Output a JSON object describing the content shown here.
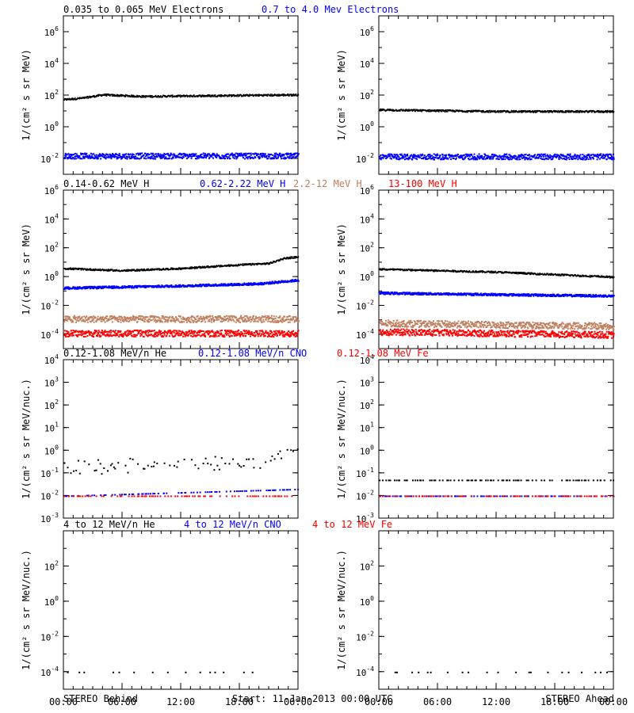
{
  "colors": {
    "black": "#000000",
    "blue": "#0000ff",
    "tan": "#c08060",
    "red": "#ff0000"
  },
  "rows": [
    {
      "ylabel": "1/(cm² s sr MeV)",
      "scale": "log",
      "ylim_exp": [
        -3,
        7
      ],
      "ticks": [
        {
          "base": "10",
          "exp": "6",
          "value": 6
        },
        {
          "base": "10",
          "exp": "4",
          "value": 4
        },
        {
          "base": "10",
          "exp": "2",
          "value": 2
        },
        {
          "base": "10",
          "exp": "0",
          "value": 0
        },
        {
          "base": "10",
          "exp": "-2",
          "value": -2
        }
      ],
      "legend": [
        {
          "text": "0.035 to 0.065 MeV Electrons",
          "color": "black"
        },
        {
          "text": "0.7 to 4.0 Mev Electrons",
          "color": "blue"
        }
      ]
    },
    {
      "ylabel": "1/(cm² s sr MeV)",
      "scale": "log",
      "ylim_exp": [
        -5,
        6
      ],
      "ticks": [
        {
          "base": "10",
          "exp": "6",
          "value": 6
        },
        {
          "base": "10",
          "exp": "4",
          "value": 4
        },
        {
          "base": "10",
          "exp": "2",
          "value": 2
        },
        {
          "base": "10",
          "exp": "0",
          "value": 0
        },
        {
          "base": "10",
          "exp": "-2",
          "value": -2
        },
        {
          "base": "10",
          "exp": "-4",
          "value": -4
        }
      ],
      "legend": [
        {
          "text": "0.14-0.62 MeV H",
          "color": "black"
        },
        {
          "text": "0.62-2.22 MeV H",
          "color": "blue"
        },
        {
          "text": "2.2-12 MeV H",
          "color": "tan"
        },
        {
          "text": "13-100 MeV H",
          "color": "red"
        }
      ]
    },
    {
      "ylabel": "1/(cm² s sr MeV/nuc.)",
      "scale": "log",
      "ylim_exp": [
        -3,
        4
      ],
      "ticks": [
        {
          "base": "10",
          "exp": "4",
          "value": 4
        },
        {
          "base": "10",
          "exp": "3",
          "value": 3
        },
        {
          "base": "10",
          "exp": "2",
          "value": 2
        },
        {
          "base": "10",
          "exp": "1",
          "value": 1
        },
        {
          "base": "10",
          "exp": "0",
          "value": 0
        },
        {
          "base": "10",
          "exp": "-1",
          "value": -1
        },
        {
          "base": "10",
          "exp": "-2",
          "value": -2
        },
        {
          "base": "10",
          "exp": "-3",
          "value": -3
        }
      ],
      "legend": [
        {
          "text": "0.12-1.08 MeV/n He",
          "color": "black"
        },
        {
          "text": "0.12-1.08 MeV/n CNO",
          "color": "blue"
        },
        {
          "text": "0.12-1.08 MeV Fe",
          "color": "red"
        }
      ]
    },
    {
      "ylabel": "1/(cm² s sr MeV/nuc.)",
      "scale": "log",
      "ylim_exp": [
        -5,
        4
      ],
      "ticks": [
        {
          "base": "10",
          "exp": "2",
          "value": 2
        },
        {
          "base": "10",
          "exp": "0",
          "value": 0
        },
        {
          "base": "10",
          "exp": "-2",
          "value": -2
        },
        {
          "base": "10",
          "exp": "-4",
          "value": -4
        }
      ],
      "legend": [
        {
          "text": "4 to 12 MeV/n He",
          "color": "black"
        },
        {
          "text": "4 to 12 MeV/n CNO",
          "color": "blue"
        },
        {
          "text": "4 to 12 MeV Fe",
          "color": "red"
        }
      ]
    }
  ],
  "xticks": [
    "00:00",
    "06:00",
    "12:00",
    "18:00",
    "00:00"
  ],
  "footer": {
    "left": "STEREO Behind",
    "center": "Start: 11-Jan-2013 00:00 UTC",
    "right": "STEREO Ahead"
  },
  "chart_data": [
    {
      "type": "scatter",
      "panel": "row1-behind",
      "scale": "log",
      "x_hours": [
        0,
        24
      ],
      "series": [
        {
          "name": "0.035 to 0.065 MeV Electrons",
          "color": "black",
          "y_log_points": [
            [
              0,
              1.75
            ],
            [
              2,
              1.85
            ],
            [
              4,
              2.05
            ],
            [
              8,
              1.95
            ],
            [
              16,
              2.0
            ],
            [
              24,
              2.05
            ]
          ]
        },
        {
          "name": "0.7 to 4.0 Mev Electrons",
          "color": "blue",
          "y_log_points": [
            [
              0,
              -1.8
            ],
            [
              12,
              -1.8
            ],
            [
              24,
              -1.8
            ]
          ]
        }
      ]
    },
    {
      "type": "scatter",
      "panel": "row1-ahead",
      "scale": "log",
      "x_hours": [
        0,
        24
      ],
      "series": [
        {
          "name": "0.035 to 0.065 MeV Electrons",
          "color": "black",
          "y_log_points": [
            [
              0,
              1.1
            ],
            [
              12,
              1.0
            ],
            [
              24,
              1.0
            ]
          ]
        },
        {
          "name": "0.7 to 4.0 Mev Electrons",
          "color": "blue",
          "y_log_points": [
            [
              0,
              -1.85
            ],
            [
              12,
              -1.85
            ],
            [
              24,
              -1.85
            ]
          ]
        }
      ]
    },
    {
      "type": "scatter",
      "panel": "row2-behind",
      "scale": "log",
      "x_hours": [
        0,
        24
      ],
      "series": [
        {
          "name": "0.14-0.62 MeV H",
          "color": "black",
          "y_log_points": [
            [
              0,
              0.6
            ],
            [
              6,
              0.45
            ],
            [
              12,
              0.6
            ],
            [
              18,
              0.85
            ],
            [
              21,
              0.95
            ],
            [
              22.5,
              1.3
            ],
            [
              24,
              1.4
            ]
          ]
        },
        {
          "name": "0.62-2.22 MeV H",
          "color": "blue",
          "y_log_points": [
            [
              0,
              -0.75
            ],
            [
              12,
              -0.6
            ],
            [
              20,
              -0.45
            ],
            [
              24,
              -0.2
            ]
          ]
        },
        {
          "name": "2.2-12 MeV H",
          "color": "tan",
          "y_log_points": [
            [
              0,
              -2.9
            ],
            [
              24,
              -2.9
            ]
          ]
        },
        {
          "name": "13-100 MeV H",
          "color": "red",
          "y_log_points": [
            [
              0,
              -3.9
            ],
            [
              24,
              -3.9
            ]
          ]
        }
      ]
    },
    {
      "type": "scatter",
      "panel": "row2-ahead",
      "scale": "log",
      "x_hours": [
        0,
        24
      ],
      "series": [
        {
          "name": "0.14-0.62 MeV H",
          "color": "black",
          "y_log_points": [
            [
              0,
              0.55
            ],
            [
              12,
              0.35
            ],
            [
              24,
              0.0
            ]
          ]
        },
        {
          "name": "0.62-2.22 MeV H",
          "color": "blue",
          "y_log_points": [
            [
              0,
              -1.1
            ],
            [
              12,
              -1.2
            ],
            [
              24,
              -1.3
            ]
          ]
        },
        {
          "name": "2.2-12 MeV H",
          "color": "tan",
          "y_log_points": [
            [
              0,
              -3.2
            ],
            [
              24,
              -3.4
            ]
          ]
        },
        {
          "name": "13-100 MeV H",
          "color": "red",
          "y_log_points": [
            [
              0,
              -3.8
            ],
            [
              24,
              -4.0
            ]
          ]
        }
      ]
    },
    {
      "type": "scatter",
      "panel": "row3-behind",
      "scale": "log",
      "x_hours": [
        0,
        24
      ],
      "series": [
        {
          "name": "0.12-1.08 MeV/n He",
          "color": "black",
          "y_log_points": [
            [
              0,
              -0.7
            ],
            [
              8,
              -0.65
            ],
            [
              16,
              -0.55
            ],
            [
              20,
              -0.45
            ],
            [
              22,
              -0.2
            ],
            [
              23,
              0.0
            ],
            [
              24,
              -0.1
            ]
          ]
        },
        {
          "name": "0.12-1.08 MeV/n CNO",
          "color": "blue",
          "y_log_points": [
            [
              0,
              -2.0
            ],
            [
              24,
              -1.7
            ]
          ]
        },
        {
          "name": "0.12-1.08 MeV Fe",
          "color": "red",
          "y_log_points": [
            [
              0,
              -2.0
            ],
            [
              24,
              -2.0
            ]
          ]
        }
      ]
    },
    {
      "type": "scatter",
      "panel": "row3-ahead",
      "scale": "log",
      "x_hours": [
        0,
        24
      ],
      "series": [
        {
          "name": "0.12-1.08 MeV/n He",
          "color": "black",
          "y_log_points": [
            [
              0,
              -1.3
            ],
            [
              24,
              -1.3
            ]
          ]
        },
        {
          "name": "0.12-1.08 MeV/n CNO",
          "color": "blue",
          "y_log_points": [
            [
              0,
              -2.0
            ],
            [
              24,
              -2.0
            ]
          ]
        },
        {
          "name": "0.12-1.08 MeV Fe",
          "color": "red",
          "y_log_points": [
            [
              0,
              -2.0
            ],
            [
              24,
              -2.0
            ]
          ]
        }
      ]
    },
    {
      "type": "scatter",
      "panel": "row4-behind",
      "scale": "log",
      "x_hours": [
        0,
        24
      ],
      "series": [
        {
          "name": "4 to 12 MeV/n He",
          "color": "black",
          "y_log_points": [
            [
              0,
              -4.0
            ],
            [
              24,
              -4.0
            ]
          ]
        }
      ]
    },
    {
      "type": "scatter",
      "panel": "row4-ahead",
      "scale": "log",
      "x_hours": [
        0,
        24
      ],
      "series": [
        {
          "name": "4 to 12 MeV/n He",
          "color": "black",
          "y_log_points": [
            [
              0,
              -4.0
            ],
            [
              24,
              -4.0
            ]
          ]
        }
      ]
    }
  ]
}
